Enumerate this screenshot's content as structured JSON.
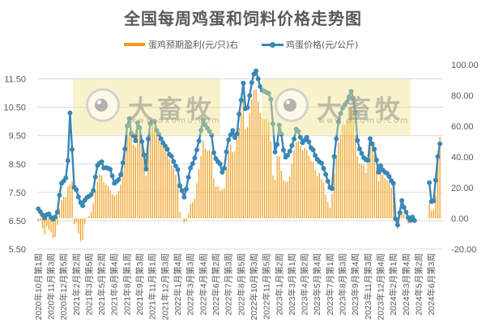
{
  "title": "全国每周鸡蛋和饲料价格走势图",
  "legend": {
    "profit": {
      "label": "蛋鸡预期盈利(元/只)右",
      "color": "#F39C12"
    },
    "price": {
      "label": "鸡蛋价格(元/公斤)",
      "color": "#3A87B5"
    }
  },
  "watermark": {
    "brand": "大畜牧",
    "url": "www.dxumu.com"
  },
  "colors": {
    "gridline": "#D9D9D9",
    "axis_text": "#595959",
    "bar": "#F0A023",
    "line": "#3A87B5"
  },
  "chart_data": {
    "type": "line",
    "title": "全国每周鸡蛋和饲料价格走势图",
    "xlabel": "",
    "ylabel": "",
    "y2label": "",
    "x_tick_interval": 6,
    "n_category_slots": 192,
    "x_tick_labels": [
      "2020年10月第1周",
      "2020年11月第3周",
      "2020年12月第5周",
      "2021年2月第2周",
      "2021年3月第5周",
      "2021年5月第2周",
      "2021年6月第4周",
      "2021年8月第1周",
      "2021年9月第3周",
      "2021年11月第1周",
      "2021年12月第3周",
      "2022年1月第4周",
      "2022年3月第3周",
      "2022年4月第4周",
      "2022年6月第2周",
      "2022年7月第3周",
      "2022年8月第5周",
      "2022年10月第3周",
      "2022年11月第5周",
      "2023年1月第2周",
      "2023年3月第1周",
      "2023年4月第2周",
      "2023年5月第4周",
      "2023年7月第1周",
      "2023年8月第3周",
      "2023年9月第4周",
      "2023年11月第3周",
      "2023年12月第4周",
      "2024年2月第1周",
      "2024年3月第4周",
      "2024年5月第2周",
      "2024年6月第3周"
    ],
    "ylim": [
      5.5,
      12.0
    ],
    "y2lim": [
      -20,
      100
    ],
    "y_ticks": [
      5.5,
      6.5,
      7.5,
      8.5,
      9.5,
      10.5,
      11.5
    ],
    "y_tick_labels": [
      "5.50",
      "6.50",
      "7.50",
      "8.50",
      "9.50",
      "10.50",
      "11.50"
    ],
    "y2_ticks": [
      -20,
      0,
      20,
      40,
      60,
      80,
      100
    ],
    "y2_tick_labels": [
      "-20.00",
      "0.00",
      "20.00",
      "40.00",
      "60.00",
      "80.00",
      "100.00"
    ],
    "grid": true,
    "legend_position": "top",
    "series": [
      {
        "name": "蛋鸡预期盈利(元/只)右",
        "type": "bar",
        "axis": "right",
        "color": "#F0A023",
        "values": [
          -2,
          -1.3,
          -6.5,
          -10.3,
          -5.3,
          -7.5,
          -9.3,
          -12.8,
          -12.2,
          -4.5,
          6.6,
          12,
          14,
          14,
          20.6,
          22,
          24,
          -4,
          -3,
          -10,
          -14.9,
          -14,
          -3.9,
          0.4,
          1.5,
          4,
          9.9,
          17.8,
          23.8,
          28.6,
          28,
          23.7,
          21.9,
          20.9,
          18.3,
          15.8,
          14.6,
          15.4,
          17.8,
          22,
          30.7,
          42.4,
          60,
          54.5,
          53.8,
          48,
          46.5,
          57.8,
          56.8,
          49,
          45,
          27.6,
          49.5,
          56,
          61.4,
          59.5,
          55.4,
          52,
          48.8,
          47.5,
          45.8,
          40.8,
          38.5,
          34.4,
          32.5,
          28.3,
          23,
          4,
          0.3,
          -3,
          -2,
          2.8,
          9.6,
          10.5,
          13,
          23,
          32,
          40.5,
          50.8,
          45.6,
          44,
          44.5,
          41.5,
          26,
          20.4,
          20.9,
          18,
          18.9,
          19.5,
          32.5,
          43,
          47.9,
          43,
          43.8,
          51.5,
          59,
          67,
          77,
          58,
          59.5,
          68.5,
          77.5,
          83.4,
          84,
          76,
          68.5,
          65.2,
          64.5,
          65,
          62.8,
          50,
          28,
          25,
          40.6,
          40.5,
          31,
          25,
          24,
          24.1,
          27.2,
          35.6,
          44.2,
          49.6,
          50.5,
          47.2,
          44.3,
          45.8,
          44.6,
          40.8,
          37.6,
          36.7,
          31.6,
          27.6,
          29.5,
          25.7,
          23.4,
          15.2,
          10.7,
          6.9,
          16,
          29,
          41.4,
          49.5,
          54.1,
          61,
          60.8,
          64,
          72,
          71.5,
          69.9,
          53.8,
          40.4,
          35.7,
          35,
          34.9,
          29.6,
          36,
          48.8,
          46.8,
          41.4,
          33,
          24.3,
          29.8,
          28.3,
          26,
          24.9,
          23.4,
          19.8,
          18,
          -2,
          -7,
          7,
          4.5,
          2.4,
          0.7,
          -3.5,
          -2.5,
          -2.4,
          -3,
          null,
          null,
          null,
          null,
          null,
          null,
          9.6,
          5,
          5.7,
          15,
          42,
          53
        ]
      },
      {
        "name": "鸡蛋价格(元/公斤)",
        "type": "line",
        "axis": "left",
        "color": "#3A87B5",
        "marker": "circle",
        "values": [
          6.92,
          6.81,
          6.7,
          6.6,
          6.71,
          6.74,
          6.62,
          6.55,
          6.63,
          6.8,
          7.4,
          7.82,
          7.9,
          8.01,
          8.62,
          10.3,
          9.01,
          7.68,
          7.59,
          7.34,
          7.14,
          7.03,
          7.22,
          7.32,
          7.36,
          7.42,
          7.56,
          8.04,
          8.45,
          8.53,
          8.58,
          8.36,
          8.37,
          8.35,
          8.31,
          8.08,
          7.82,
          7.88,
          7.95,
          8.12,
          8.54,
          9.03,
          9.84,
          10.1,
          9.58,
          9.5,
          9.32,
          9.95,
          9.78,
          9.29,
          8.82,
          8.32,
          9.38,
          9.92,
          10.0,
          10.0,
          9.68,
          9.55,
          9.39,
          9.25,
          9.14,
          9.02,
          8.84,
          8.77,
          8.59,
          8.43,
          8.3,
          7.73,
          7.56,
          7.33,
          7.62,
          8.03,
          8.36,
          8.51,
          8.71,
          9.0,
          9.31,
          9.69,
          10.06,
          9.87,
          9.76,
          9.65,
          9.52,
          8.9,
          8.69,
          8.58,
          8.5,
          8.21,
          8.35,
          8.93,
          9.35,
          9.53,
          9.68,
          9.43,
          9.56,
          10.26,
          10.75,
          11.35,
          10.45,
          10.49,
          10.91,
          11.37,
          11.67,
          11.78,
          11.5,
          11.23,
          11.1,
          11.06,
          11.02,
          10.99,
          10.78,
          9.92,
          8.92,
          9.19,
          9.87,
          9.55,
          8.99,
          8.74,
          8.81,
          8.95,
          9.15,
          9.38,
          9.73,
          9.65,
          9.44,
          9.25,
          9.34,
          9.44,
          9.28,
          9.07,
          9.0,
          8.8,
          8.66,
          8.58,
          8.53,
          8.34,
          8.13,
          7.89,
          7.67,
          7.63,
          8.76,
          9.39,
          9.98,
          10.28,
          10.47,
          10.58,
          10.68,
          10.87,
          11.06,
          10.82,
          10.32,
          9.33,
          9.03,
          8.87,
          8.72,
          8.65,
          8.63,
          9.39,
          9.21,
          9.02,
          8.64,
          8.21,
          8.44,
          8.29,
          8.21,
          8.17,
          8.06,
          7.91,
          7.82,
          6.57,
          6.35,
          6.78,
          7.21,
          6.97,
          6.8,
          6.61,
          6.51,
          6.63,
          6.51,
          null,
          null,
          null,
          null,
          null,
          null,
          7.84,
          7.17,
          7.2,
          7.93,
          8.76,
          9.21
        ]
      }
    ]
  }
}
